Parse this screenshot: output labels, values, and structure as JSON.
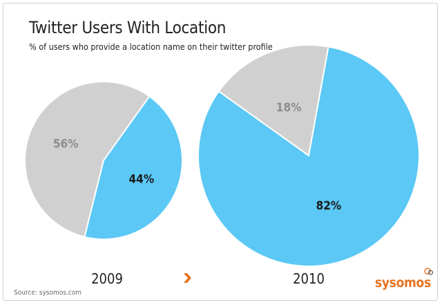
{
  "chart_data": [
    {
      "type": "pie",
      "title": "Twitter Users With Location",
      "subtitle": "% of users who provide a location name on their twitter profile",
      "label": "2009",
      "slices": [
        {
          "label": "56%",
          "value": 56,
          "color": "#d0d0d0",
          "text_color": "#8c8c8c"
        },
        {
          "label": "44%",
          "value": 44,
          "color": "#5bc8f5",
          "text_color": "#1a1a1a"
        }
      ]
    },
    {
      "type": "pie",
      "label": "2010",
      "slices": [
        {
          "label": "18%",
          "value": 18,
          "color": "#d0d0d0",
          "text_color": "#8c8c8c"
        },
        {
          "label": "82%",
          "value": 82,
          "color": "#5bc8f5",
          "text_color": "#1a1a1a"
        }
      ]
    }
  ],
  "source": "Source: sysomos.com",
  "logo": "sysomos",
  "colors": {
    "accent": "#e8731f",
    "blue": "#5bc8f5",
    "gray": "#d0d0d0"
  },
  "icons": {
    "arrow": "chevron-right-icon",
    "logo_mark": "chat-bubbles-icon"
  }
}
